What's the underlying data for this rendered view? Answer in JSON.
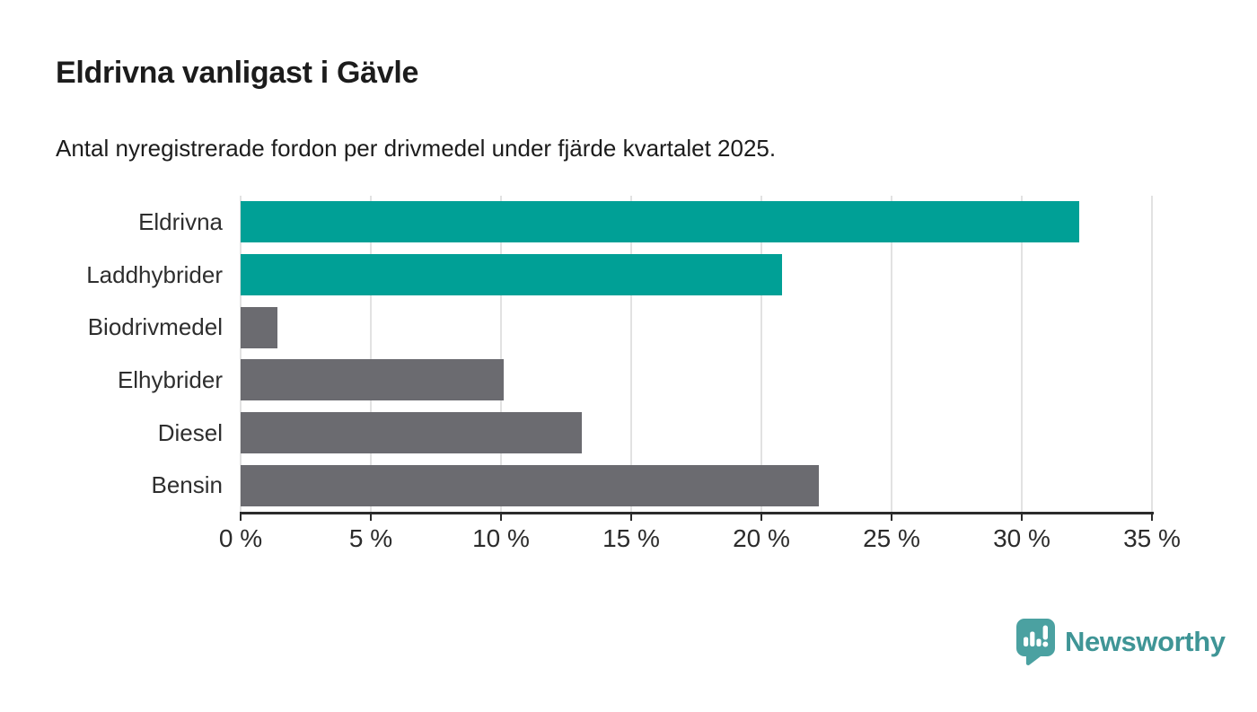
{
  "header": {
    "title": "Eldrivna vanligast i Gävle",
    "subtitle": "Antal nyregistrerade fordon per drivmedel under fjärde kvartalet 2025."
  },
  "colors": {
    "highlight": "#00a096",
    "muted": "#6b6b70",
    "axis": "#2b2b2b",
    "gridline": "#e2e2e2",
    "text": "#1c1c1c",
    "brand_text": "#3f9596",
    "brand_icon": "#4ba1a1"
  },
  "chart_data": {
    "type": "bar",
    "orientation": "horizontal",
    "title": "Eldrivna vanligast i Gävle",
    "subtitle": "Antal nyregistrerade fordon per drivmedel under fjärde kvartalet 2025.",
    "categories": [
      "Eldrivna",
      "Laddhybrider",
      "Biodrivmedel",
      "Elhybrider",
      "Diesel",
      "Bensin"
    ],
    "values": [
      32.2,
      20.8,
      1.4,
      10.1,
      13.1,
      22.2
    ],
    "highlighted": [
      true,
      true,
      false,
      false,
      false,
      false
    ],
    "unit": "%",
    "xlim": [
      0,
      35
    ],
    "xticks": [
      {
        "value": 0,
        "label": "0 %"
      },
      {
        "value": 5,
        "label": "5 %"
      },
      {
        "value": 10,
        "label": "10 %"
      },
      {
        "value": 15,
        "label": "15 %"
      },
      {
        "value": 20,
        "label": "20 %"
      },
      {
        "value": 25,
        "label": "25 %"
      },
      {
        "value": 30,
        "label": "30 %"
      },
      {
        "value": 35,
        "label": "35 %"
      }
    ],
    "grid": "vertical",
    "legend": "none"
  },
  "footer": {
    "brand": "Newsworthy"
  }
}
